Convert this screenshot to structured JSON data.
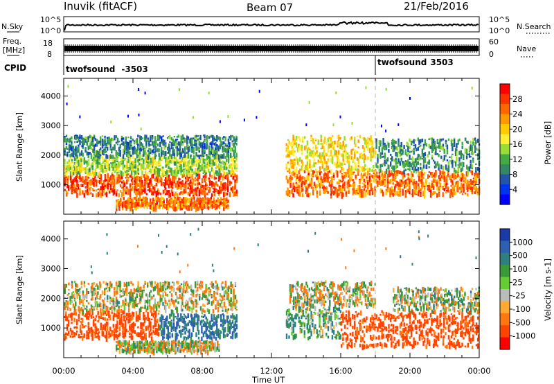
{
  "header": {
    "station": "Inuvik (fitACF)",
    "beam": "Beam 07",
    "date": "21/Feb/2016"
  },
  "noise_panel": {
    "left_label": "N.Sky",
    "right_label": "N.Search",
    "left_ticks": [
      "10^5",
      "10^0"
    ],
    "right_ticks": [
      "10^5",
      "10^0"
    ]
  },
  "freq_panel": {
    "left_label_1": "Freq.",
    "left_label_2": "[MHz]",
    "right_label": "Nave",
    "left_ticks": [
      "18",
      "8"
    ],
    "right_ticks": [
      "60",
      "0"
    ]
  },
  "cpid_panel": {
    "label": "CPID",
    "programs": [
      {
        "name": "twofsound",
        "id": "-3503",
        "start_hour": 0
      },
      {
        "name": "twofsound",
        "id": "3503",
        "start_hour": 18
      }
    ]
  },
  "chart_data": [
    {
      "type": "heatmap",
      "title": "Power",
      "ylabel": "Slant Range [km]",
      "colorbar_label": "Power [dB]",
      "colorbar_ticks": [
        "28",
        "24",
        "20",
        "16",
        "12",
        "8",
        "4"
      ],
      "colorbar_colors": [
        "#ff0000",
        "#ff3300",
        "#ff6600",
        "#ff9900",
        "#ffcc00",
        "#ffee33",
        "#99dd33",
        "#44aa44",
        "#338866",
        "#2255aa",
        "#0033ee",
        "#0000ff"
      ],
      "ylim": [
        0,
        4600
      ],
      "y_ticks": [
        "1000",
        "2000",
        "3000",
        "4000"
      ],
      "xlim_hours": [
        0,
        24
      ],
      "echo_regions": [
        {
          "t0": 0,
          "t1": 10.0,
          "r0": 700,
          "r1": 1400,
          "value_db": 26
        },
        {
          "t0": 0,
          "t1": 10.0,
          "r0": 1400,
          "r1": 2000,
          "value_db": 14
        },
        {
          "t0": 0,
          "t1": 10.0,
          "r0": 2000,
          "r1": 2700,
          "value_db": 8
        },
        {
          "t0": 3.0,
          "t1": 9.5,
          "r0": 250,
          "r1": 600,
          "value_db": 24
        },
        {
          "t0": 12.8,
          "t1": 24,
          "r0": 700,
          "r1": 1500,
          "value_db": 24
        },
        {
          "t0": 12.8,
          "t1": 18.0,
          "r0": 1500,
          "r1": 2700,
          "value_db": 18
        },
        {
          "t0": 18.0,
          "t1": 24,
          "r0": 1500,
          "r1": 2600,
          "value_db": 9
        }
      ]
    },
    {
      "type": "heatmap",
      "title": "Velocity",
      "ylabel": "Slant Range [km]",
      "xlabel": "Time UT",
      "colorbar_label": "Velocity [m s-1]",
      "colorbar_ticks": [
        "1000",
        "500",
        "100",
        "25",
        "-25",
        "-100",
        "-500",
        "-1000"
      ],
      "colorbar_colors": [
        "#1a3aa8",
        "#2e5fb0",
        "#2e8080",
        "#3a9a3a",
        "#66cc33",
        "#bbbbbb",
        "#ffaa33",
        "#ff7711",
        "#ff4400",
        "#ff0000"
      ],
      "ylim": [
        0,
        4600
      ],
      "y_ticks": [
        "1000",
        "2000",
        "3000",
        "4000"
      ],
      "x_ticks": [
        "00:00",
        "04:00",
        "08:00",
        "12:00",
        "16:00",
        "20:00",
        "00:00"
      ],
      "xlim_hours": [
        0,
        24
      ],
      "echo_regions": [
        {
          "t0": 0,
          "t1": 5.5,
          "r0": 700,
          "r1": 1600,
          "value_ms": -300
        },
        {
          "t0": 5.5,
          "t1": 10.0,
          "r0": 700,
          "r1": 1500,
          "value_ms": 300
        },
        {
          "t0": 0,
          "t1": 10.0,
          "r0": 1600,
          "r1": 2600,
          "value_ms": 0
        },
        {
          "t0": 3.0,
          "t1": 9.0,
          "r0": 250,
          "r1": 600,
          "value_ms": 0
        },
        {
          "t0": 12.8,
          "t1": 16.0,
          "r0": 700,
          "r1": 1800,
          "value_ms": 100
        },
        {
          "t0": 13.0,
          "t1": 18.0,
          "r0": 1800,
          "r1": 2600,
          "value_ms": 0
        },
        {
          "t0": 16.0,
          "t1": 24,
          "r0": 400,
          "r1": 1600,
          "value_ms": -300
        },
        {
          "t0": 19.0,
          "t1": 24,
          "r0": 1600,
          "r1": 2400,
          "value_ms": 50
        }
      ]
    }
  ]
}
